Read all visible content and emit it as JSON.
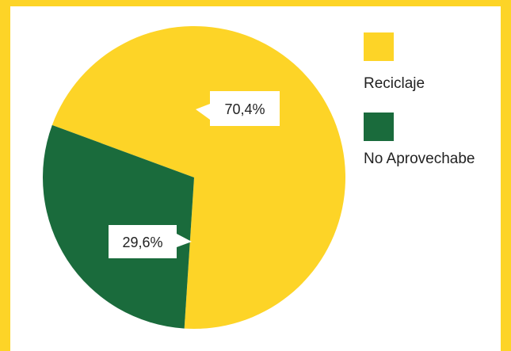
{
  "chart_data": {
    "type": "pie",
    "categories": [
      "Reciclaje",
      "No Aprovechabe"
    ],
    "values": [
      70.4,
      29.6
    ],
    "data_labels": [
      "70,4%",
      "29,6%"
    ],
    "colors": [
      "#fdd427",
      "#1a6b3c"
    ],
    "legend_position": "right",
    "title": ""
  },
  "theme": {
    "frame_color": "#fdd427",
    "background": "#ffffff"
  }
}
